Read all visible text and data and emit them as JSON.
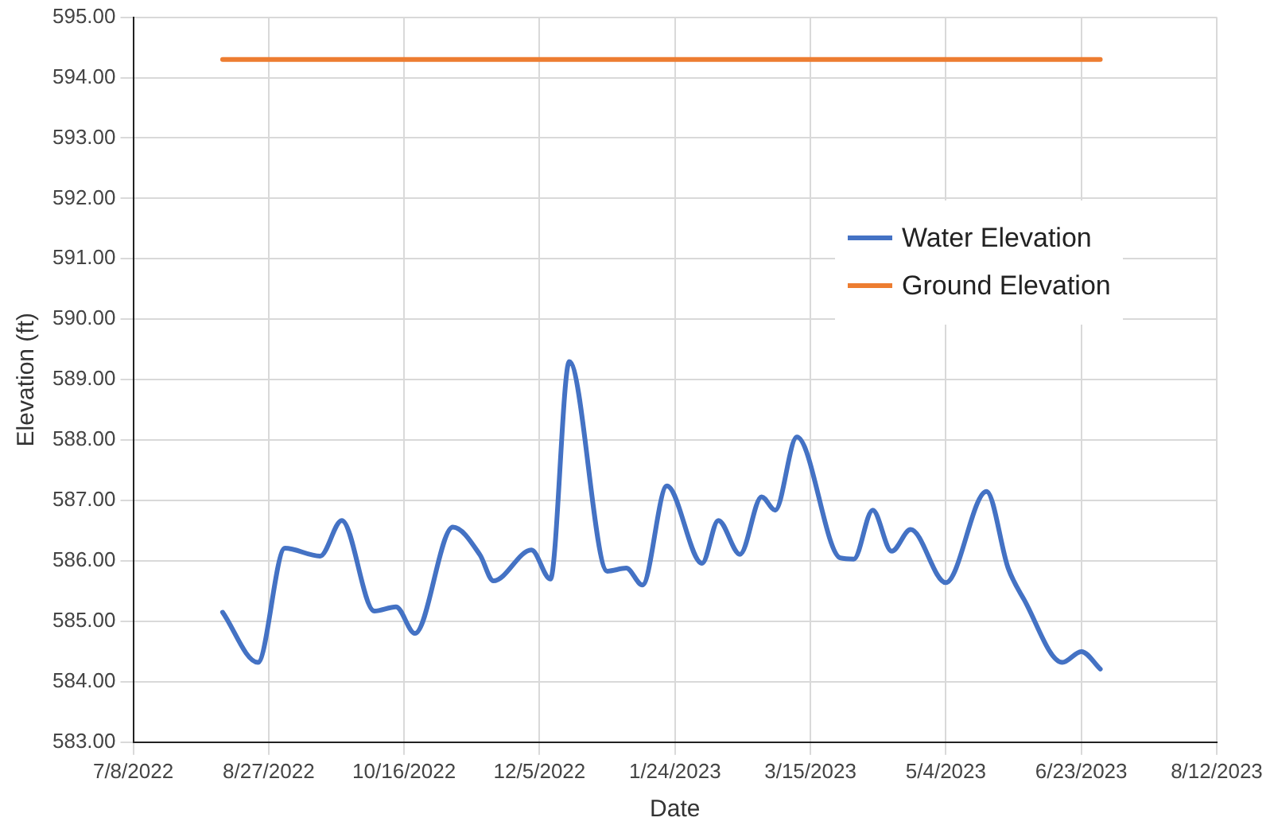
{
  "chart_data": {
    "type": "line",
    "xlabel": "Date",
    "ylabel": "Elevation (ft)",
    "xlim": [
      "2022-07-08",
      "2023-08-12"
    ],
    "xticks": [
      {
        "value": "2022-07-08",
        "label": "7/8/2022"
      },
      {
        "value": "2022-08-27",
        "label": "8/27/2022"
      },
      {
        "value": "2022-10-16",
        "label": "10/16/2022"
      },
      {
        "value": "2022-12-05",
        "label": "12/5/2022"
      },
      {
        "value": "2023-01-24",
        "label": "1/24/2023"
      },
      {
        "value": "2023-03-15",
        "label": "3/15/2023"
      },
      {
        "value": "2023-05-04",
        "label": "5/4/2023"
      },
      {
        "value": "2023-06-23",
        "label": "6/23/2023"
      },
      {
        "value": "2023-08-12",
        "label": "8/12/2023"
      }
    ],
    "ylim": [
      583,
      595
    ],
    "yticks": [
      {
        "value": 583,
        "label": "583.00"
      },
      {
        "value": 584,
        "label": "584.00"
      },
      {
        "value": 585,
        "label": "585.00"
      },
      {
        "value": 586,
        "label": "586.00"
      },
      {
        "value": 587,
        "label": "587.00"
      },
      {
        "value": 588,
        "label": "588.00"
      },
      {
        "value": 589,
        "label": "589.00"
      },
      {
        "value": 590,
        "label": "590.00"
      },
      {
        "value": 591,
        "label": "591.00"
      },
      {
        "value": 592,
        "label": "592.00"
      },
      {
        "value": 593,
        "label": "593.00"
      },
      {
        "value": 594,
        "label": "594.00"
      },
      {
        "value": 595,
        "label": "595.00"
      }
    ],
    "grid": true,
    "legend": "right",
    "marker": "none",
    "line_style": "solid",
    "series": [
      {
        "name": "Water Elevation",
        "color": "#4472c4",
        "x": [
          "2022-08-10",
          "2022-08-23",
          "2022-09-02",
          "2022-09-15",
          "2022-09-23",
          "2022-10-05",
          "2022-10-13",
          "2022-10-20",
          "2022-11-03",
          "2022-11-13",
          "2022-11-18",
          "2022-12-02",
          "2022-12-09",
          "2022-12-16",
          "2022-12-30",
          "2023-01-06",
          "2023-01-12",
          "2023-01-21",
          "2023-02-03",
          "2023-02-09",
          "2023-02-17",
          "2023-02-25",
          "2023-03-02",
          "2023-03-10",
          "2023-03-26",
          "2023-03-31",
          "2023-04-07",
          "2023-04-14",
          "2023-04-21",
          "2023-05-04",
          "2023-05-19",
          "2023-05-27",
          "2023-06-02",
          "2023-06-16",
          "2023-06-23",
          "2023-06-30"
        ],
        "values": [
          585.15,
          584.32,
          586.21,
          586.08,
          586.67,
          585.17,
          585.24,
          584.8,
          586.56,
          586.1,
          585.67,
          586.18,
          585.7,
          589.3,
          585.83,
          585.88,
          585.6,
          587.24,
          585.96,
          586.67,
          586.11,
          587.06,
          586.84,
          588.05,
          586.05,
          586.03,
          586.84,
          586.16,
          586.52,
          585.64,
          587.15,
          585.88,
          585.35,
          584.32,
          584.5,
          584.21
        ]
      },
      {
        "name": "Ground Elevation",
        "color": "#ed7d31",
        "x": [
          "2022-08-10",
          "2023-06-30"
        ],
        "values": [
          594.3,
          594.3
        ]
      }
    ]
  }
}
